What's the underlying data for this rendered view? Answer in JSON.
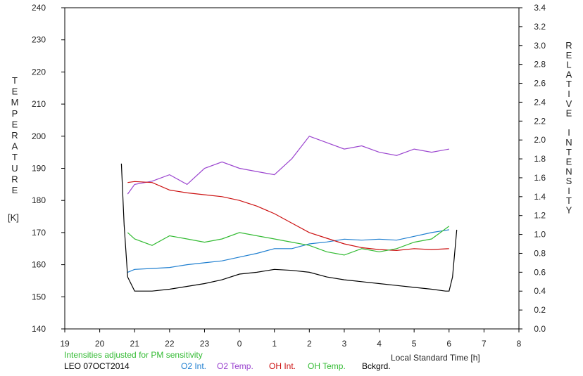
{
  "chart_data": {
    "type": "line",
    "station": "LEO 07OCT2014",
    "note": "Intensities adjusted for PM sensitivity",
    "xlabel": "Local Standard Time [h]",
    "ylabel_left": "TEMPERATURE",
    "ylabel_left_unit": "[K]",
    "ylabel_right": "RELATIVE INTENSITY",
    "xlim": [
      19,
      32
    ],
    "x_ticks": [
      "19",
      "20",
      "21",
      "22",
      "23",
      "0",
      "1",
      "2",
      "3",
      "4",
      "5",
      "6",
      "7",
      "8"
    ],
    "ylim_left": [
      140,
      240
    ],
    "y_left_ticks": [
      "140",
      "150",
      "160",
      "170",
      "180",
      "190",
      "200",
      "210",
      "220",
      "230",
      "240"
    ],
    "ylim_right": [
      0.0,
      3.4
    ],
    "y_right_ticks": [
      "0.0",
      "0.2",
      "0.4",
      "0.6",
      "0.8",
      "1.0",
      "1.2",
      "1.4",
      "1.6",
      "1.8",
      "2.0",
      "2.2",
      "2.4",
      "2.6",
      "2.8",
      "3.0",
      "3.2",
      "3.4"
    ],
    "grid": false,
    "legend_position": "bottom",
    "series": [
      {
        "name": "O2 Int.",
        "axis": "right",
        "color": "#1f7fd0",
        "x": [
          20.8,
          21.0,
          21.5,
          22.0,
          22.5,
          23.0,
          23.5,
          24.0,
          24.5,
          25.0,
          25.5,
          26.0,
          26.5,
          27.0,
          27.5,
          28.0,
          28.5,
          29.0,
          29.5,
          30.0
        ],
        "y": [
          0.6,
          0.63,
          0.64,
          0.65,
          0.68,
          0.7,
          0.72,
          0.76,
          0.8,
          0.85,
          0.85,
          0.9,
          0.92,
          0.95,
          0.94,
          0.95,
          0.94,
          0.98,
          1.02,
          1.05
        ]
      },
      {
        "name": "O2 Temp.",
        "axis": "left",
        "color": "#9b45cf",
        "x": [
          20.8,
          21.0,
          21.5,
          22.0,
          22.5,
          23.0,
          23.5,
          24.0,
          24.5,
          25.0,
          25.5,
          26.0,
          26.5,
          27.0,
          27.5,
          28.0,
          28.5,
          29.0,
          29.5,
          30.0
        ],
        "y": [
          182,
          185,
          186,
          188,
          185,
          190,
          192,
          190,
          189,
          188,
          193,
          200,
          198,
          196,
          197,
          195,
          194,
          196,
          195,
          196
        ]
      },
      {
        "name": "OH Int.",
        "axis": "right",
        "color": "#cc1111",
        "x": [
          20.8,
          21.0,
          21.5,
          22.0,
          22.5,
          23.0,
          23.5,
          24.0,
          24.5,
          25.0,
          25.5,
          26.0,
          26.5,
          27.0,
          27.5,
          28.0,
          28.5,
          29.0,
          29.5,
          30.0
        ],
        "y": [
          1.55,
          1.56,
          1.55,
          1.47,
          1.44,
          1.42,
          1.4,
          1.36,
          1.3,
          1.22,
          1.12,
          1.02,
          0.96,
          0.9,
          0.86,
          0.84,
          0.83,
          0.85,
          0.84,
          0.85
        ]
      },
      {
        "name": "OH Temp.",
        "axis": "left",
        "color": "#33bb33",
        "x": [
          20.8,
          21.0,
          21.5,
          22.0,
          22.5,
          23.0,
          23.5,
          24.0,
          24.5,
          25.0,
          25.5,
          26.0,
          26.5,
          27.0,
          27.5,
          28.0,
          28.5,
          29.0,
          29.5,
          30.0
        ],
        "y": [
          170,
          168,
          166,
          169,
          168,
          167,
          168,
          170,
          169,
          168,
          167,
          166,
          164,
          163,
          165,
          164,
          165,
          167,
          168,
          172
        ]
      },
      {
        "name": "Bckgrd.",
        "axis": "right",
        "color": "#000000",
        "x": [
          20.62,
          20.7,
          20.8,
          21.0,
          21.5,
          22.0,
          22.5,
          23.0,
          23.5,
          24.0,
          24.5,
          25.0,
          25.5,
          26.0,
          26.5,
          27.0,
          27.5,
          28.0,
          28.5,
          29.0,
          29.5,
          29.9,
          30.0,
          30.1,
          30.22
        ],
        "y": [
          1.75,
          1.1,
          0.55,
          0.4,
          0.4,
          0.42,
          0.45,
          0.48,
          0.52,
          0.58,
          0.6,
          0.63,
          0.62,
          0.6,
          0.55,
          0.52,
          0.5,
          0.48,
          0.46,
          0.44,
          0.42,
          0.4,
          0.4,
          0.55,
          1.05
        ]
      }
    ]
  }
}
